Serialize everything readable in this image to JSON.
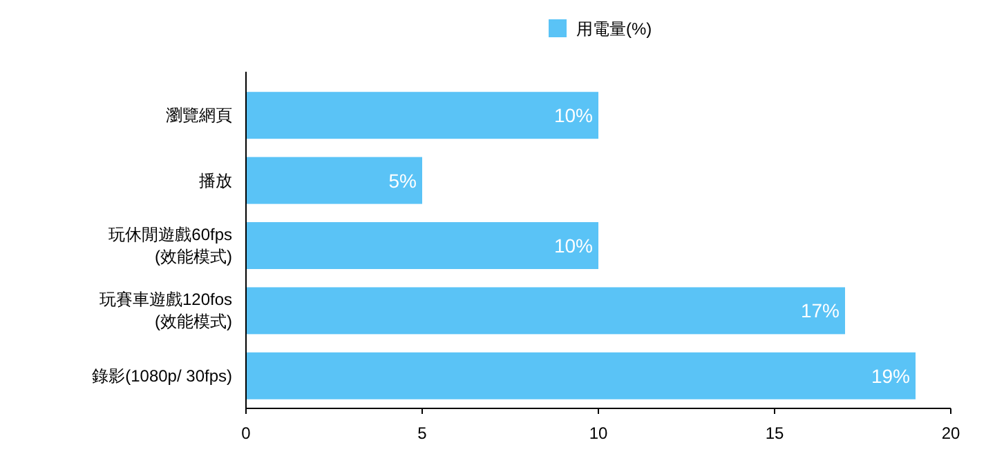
{
  "chart_data": {
    "type": "bar",
    "orientation": "horizontal",
    "categories": [
      "瀏覽網頁",
      "播放",
      "玩休閒遊戲60fps\n(效能模式)",
      "玩賽車遊戲120fos\n(效能模式)",
      "錄影(1080p/ 30fps)"
    ],
    "series": [
      {
        "name": "用電量(%)",
        "color": "#5ac3f6",
        "values": [
          10,
          5,
          10,
          17,
          19
        ],
        "value_labels": [
          "10%",
          "5%",
          "10%",
          "17%",
          "19%"
        ]
      }
    ],
    "xlim": [
      0,
      20
    ],
    "xticks": [
      0,
      5,
      10,
      15,
      20
    ],
    "legend": "top"
  }
}
